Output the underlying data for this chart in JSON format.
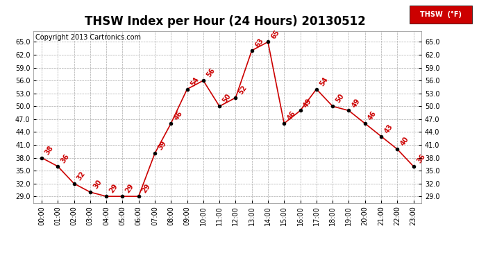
{
  "title": "THSW Index per Hour (24 Hours) 20130512",
  "copyright": "Copyright 2013 Cartronics.com",
  "legend_label": "THSW  (°F)",
  "hours": [
    "00:00",
    "01:00",
    "02:00",
    "03:00",
    "04:00",
    "05:00",
    "06:00",
    "07:00",
    "08:00",
    "09:00",
    "10:00",
    "11:00",
    "12:00",
    "13:00",
    "14:00",
    "15:00",
    "16:00",
    "17:00",
    "18:00",
    "19:00",
    "20:00",
    "21:00",
    "22:00",
    "23:00"
  ],
  "yvals": [
    38,
    36,
    32,
    30,
    29,
    29,
    29,
    39,
    46,
    54,
    56,
    50,
    52,
    63,
    65,
    46,
    49,
    54,
    50,
    49,
    46,
    43,
    40,
    36
  ],
  "ylim": [
    27.5,
    67.5
  ],
  "yticks": [
    29.0,
    32.0,
    35.0,
    38.0,
    41.0,
    44.0,
    47.0,
    50.0,
    53.0,
    56.0,
    59.0,
    62.0,
    65.0
  ],
  "line_color": "#cc0000",
  "marker_color": "#000000",
  "bg_color": "#ffffff",
  "grid_color": "#aaaaaa",
  "title_fontsize": 12,
  "tick_fontsize": 7,
  "annot_fontsize": 7,
  "copyright_fontsize": 7
}
